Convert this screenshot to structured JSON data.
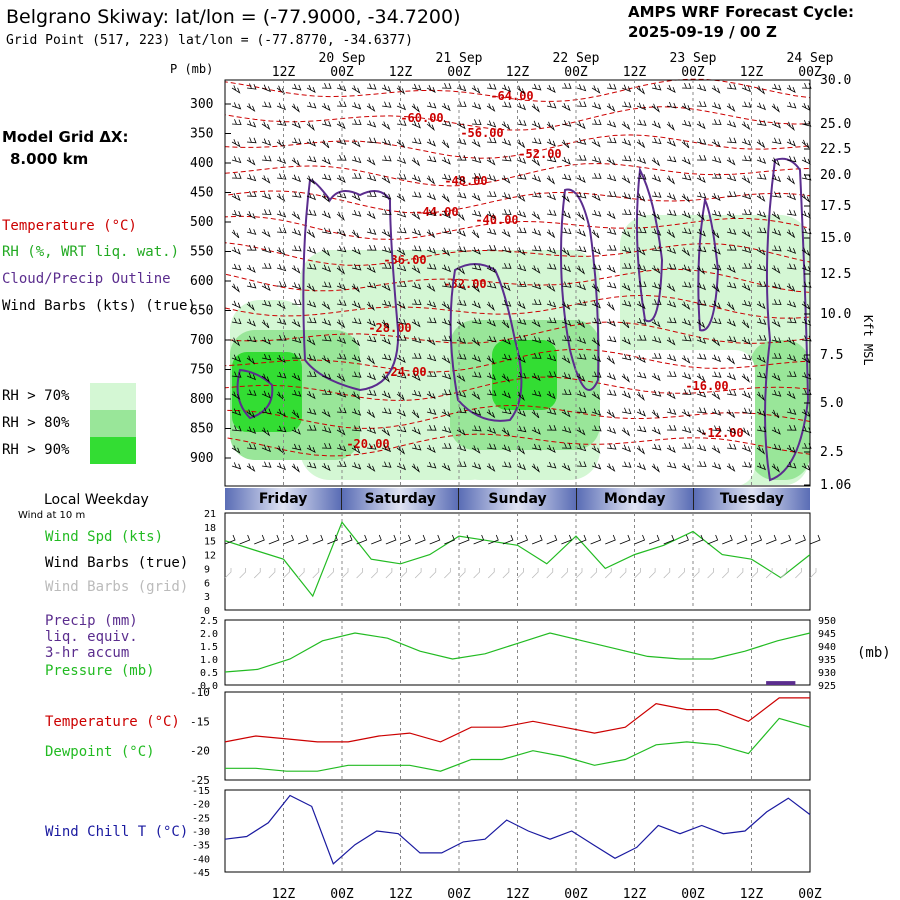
{
  "header": {
    "title": "Belgrano Skiway:  lat/lon = (-77.9000, -34.7200)",
    "grid_point": "Grid Point (517, 223) lat/lon = (-77.8770, -34.6377)",
    "cycle_line1": "AMPS WRF Forecast Cycle:",
    "cycle_line2": "2025-09-19 / 00  Z"
  },
  "left_panel": {
    "model_grid": "Model Grid ΔX:",
    "grid_spacing": "8.000 km",
    "temperature_label": "Temperature (°C)",
    "rh_label": "RH (%, WRT liq. wat.)",
    "cloud_label": "Cloud/Precip Outline",
    "wind_barbs_label": "Wind Barbs (kts) (true)",
    "rh_70": "RH > 70%",
    "rh_80": "RH > 80%",
    "rh_90": "RH > 90%"
  },
  "colors": {
    "temperature": "#cc0000",
    "rh_label": "#22aa22",
    "cloud": "#5b2d8e",
    "rh70": "#d4f7d4",
    "rh80": "#99e699",
    "rh90": "#33dd33",
    "green_line": "#22bb22",
    "blue_line": "#1a1aa0",
    "grid_barbs": "#bbbbbb"
  },
  "time_axis": {
    "hour_labels": [
      "12Z",
      "00Z",
      "12Z",
      "00Z",
      "12Z",
      "00Z",
      "12Z",
      "00Z",
      "12Z",
      "00Z"
    ],
    "date_labels": [
      "20 Sep",
      "21 Sep",
      "22 Sep",
      "23 Sep",
      "24 Sep"
    ],
    "weekdays": [
      "Friday",
      "Saturday",
      "Sunday",
      "Monday",
      "Tuesday"
    ],
    "local_weekday": "Local Weekday",
    "wind_at_10m": "Wind at 10 m"
  },
  "chart_data": [
    {
      "type": "time-height cross section",
      "name": "profile",
      "ylabel_left": "P (mb)",
      "ylabel_right": "Kft MSL",
      "pressure_ticks": [
        300,
        350,
        400,
        450,
        500,
        550,
        600,
        650,
        700,
        750,
        800,
        850,
        900
      ],
      "height_ticks_kft": [
        "30.0",
        "25.0",
        "22.5",
        "20.0",
        "17.5",
        "15.0",
        "12.5",
        "10.0",
        "7.5",
        "5.0",
        "2.5",
        "1.06"
      ],
      "temperature_contour_labels": [
        "-64.00",
        "-60.00",
        "-56.00",
        "-52.00",
        "-48.00",
        "-44.00",
        "-40.00",
        "-36.00",
        "-32.00",
        "-28.00",
        "-24.00",
        "-20.00",
        "-16.00",
        "-12.00"
      ]
    },
    {
      "type": "line",
      "name": "wind",
      "series_labels": [
        "Wind Spd (kts)",
        "Wind Barbs (true)",
        "Wind Barbs (grid)"
      ],
      "y_ticks": [
        "21",
        "18",
        "15",
        "12",
        "9",
        "6",
        "3",
        "0"
      ],
      "ylim": [
        0,
        21
      ],
      "x_hours": [
        0,
        6,
        12,
        18,
        24,
        30,
        36,
        42,
        48,
        54,
        60,
        66,
        72,
        78,
        84,
        90,
        96,
        102,
        108,
        114,
        120
      ],
      "wind_speed": [
        15,
        13,
        11,
        3,
        19,
        11,
        10,
        12,
        16,
        15,
        14,
        10,
        16,
        9,
        12,
        14,
        17,
        12,
        11,
        7,
        12
      ]
    },
    {
      "type": "line",
      "name": "pressure",
      "series_labels": [
        "Precip (mm)",
        "liq. equiv.",
        "3-hr accum",
        "Pressure (mb)"
      ],
      "left_ticks": [
        "2.5",
        "2.0",
        "1.5",
        "1.0",
        "0.5",
        "0.0"
      ],
      "right_ticks": [
        "950",
        "945",
        "940",
        "935",
        "930",
        "925"
      ],
      "right_unit": "(mb)",
      "ylim_left": [
        0,
        2.5
      ],
      "ylim_right": [
        925,
        950
      ],
      "pressure": [
        930,
        931,
        935,
        942,
        945,
        943,
        938,
        935,
        937,
        941,
        945,
        942,
        939,
        936,
        935,
        935,
        938,
        942,
        945
      ],
      "precip": [
        0.15
      ]
    },
    {
      "type": "line",
      "name": "temperature",
      "series_labels": [
        "Temperature (°C)",
        "Dewpoint (°C)"
      ],
      "y_ticks": [
        "-10",
        "-15",
        "-20",
        "-25"
      ],
      "ylim": [
        -25,
        -10
      ],
      "temperature": [
        -18.5,
        -17.5,
        -18,
        -18.5,
        -18.5,
        -17.5,
        -17,
        -18.5,
        -16,
        -16,
        -15,
        -16,
        -17,
        -16,
        -12,
        -13,
        -13,
        -15,
        -11,
        -11
      ],
      "dewpoint": [
        -23,
        -23,
        -23.5,
        -23.5,
        -22.5,
        -22.5,
        -22.5,
        -23.5,
        -21.5,
        -21.5,
        -20,
        -21,
        -22.5,
        -21.5,
        -19,
        -18.5,
        -19,
        -20.5,
        -14.5,
        -16
      ]
    },
    {
      "type": "line",
      "name": "wind_chill",
      "series_labels": [
        "Wind Chill T (°C)"
      ],
      "y_ticks": [
        "-15",
        "-20",
        "-25",
        "-30",
        "-35",
        "-40",
        "-45"
      ],
      "ylim": [
        -45,
        -15
      ],
      "wind_chill": [
        -33,
        -32,
        -27,
        -17,
        -21,
        -42,
        -35,
        -30,
        -31,
        -38,
        -38,
        -34,
        -33,
        -26,
        -30,
        -33,
        -30,
        -35,
        -40,
        -36,
        -28,
        -31,
        -28,
        -31,
        -30,
        -23,
        -18,
        -24
      ]
    }
  ]
}
